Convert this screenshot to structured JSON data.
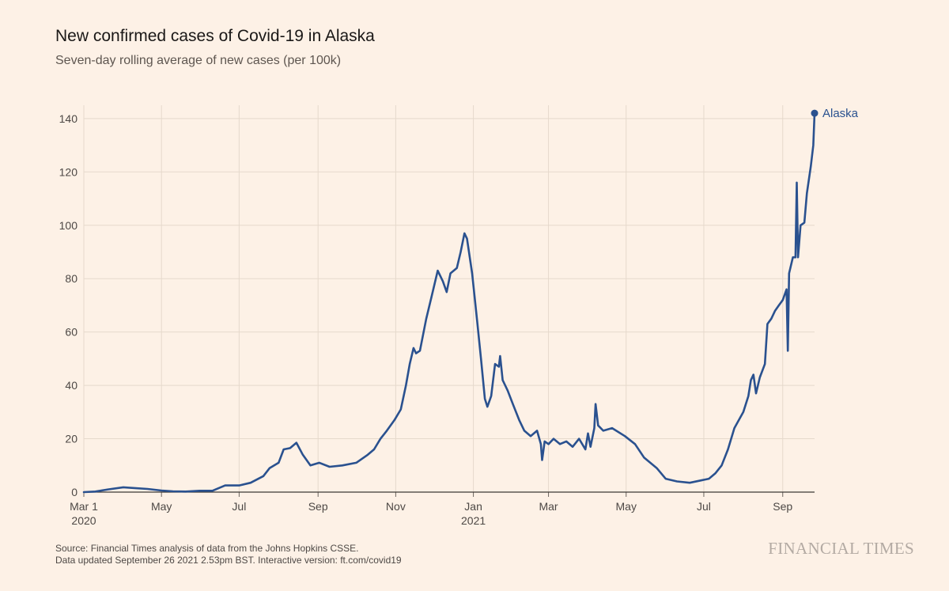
{
  "header": {
    "title": "New confirmed cases of Covid-19 in Alaska",
    "subtitle": "Seven-day rolling average of new cases (per 100k)"
  },
  "footer": {
    "source": "Source: Financial Times analysis of data from the Johns Hopkins CSSE.",
    "updated": "Data updated September 26 2021 2.53pm BST. Interactive version: ft.com/covid19",
    "brand": "FINANCIAL TIMES"
  },
  "chart_data": {
    "type": "line",
    "title": "New confirmed cases of Covid-19 in Alaska",
    "subtitle": "Seven-day rolling average of new cases (per 100k)",
    "xlabel": "",
    "ylabel": "",
    "xlim": [
      "2020-03-01",
      "2021-09-26"
    ],
    "ylim": [
      0,
      145
    ],
    "yticks": [
      0,
      20,
      40,
      60,
      80,
      100,
      120,
      140
    ],
    "xticks": [
      {
        "date": "2020-03-01",
        "label": "Mar 1",
        "sublabel": "2020"
      },
      {
        "date": "2020-05-01",
        "label": "May"
      },
      {
        "date": "2020-07-01",
        "label": "Jul"
      },
      {
        "date": "2020-09-01",
        "label": "Sep"
      },
      {
        "date": "2020-11-01",
        "label": "Nov"
      },
      {
        "date": "2021-01-01",
        "label": "Jan",
        "sublabel": "2021"
      },
      {
        "date": "2021-03-01",
        "label": "Mar"
      },
      {
        "date": "2021-05-01",
        "label": "May"
      },
      {
        "date": "2021-07-01",
        "label": "Jul"
      },
      {
        "date": "2021-09-01",
        "label": "Sep"
      }
    ],
    "grid": true,
    "line_color": "#2a518f",
    "series": [
      {
        "name": "Alaska",
        "points": [
          [
            "2020-03-01",
            0
          ],
          [
            "2020-03-10",
            0.2
          ],
          [
            "2020-03-20",
            1
          ],
          [
            "2020-04-01",
            1.8
          ],
          [
            "2020-04-10",
            1.5
          ],
          [
            "2020-04-20",
            1.2
          ],
          [
            "2020-05-01",
            0.6
          ],
          [
            "2020-05-10",
            0.3
          ],
          [
            "2020-05-20",
            0.2
          ],
          [
            "2020-05-31",
            0.5
          ],
          [
            "2020-06-10",
            0.5
          ],
          [
            "2020-06-20",
            2.5
          ],
          [
            "2020-07-01",
            2.5
          ],
          [
            "2020-07-10",
            3.5
          ],
          [
            "2020-07-20",
            6
          ],
          [
            "2020-07-25",
            9
          ],
          [
            "2020-08-01",
            11
          ],
          [
            "2020-08-05",
            16
          ],
          [
            "2020-08-10",
            16.5
          ],
          [
            "2020-08-15",
            18.5
          ],
          [
            "2020-08-20",
            14
          ],
          [
            "2020-08-26",
            10
          ],
          [
            "2020-09-02",
            11
          ],
          [
            "2020-09-10",
            9.5
          ],
          [
            "2020-09-20",
            10
          ],
          [
            "2020-10-01",
            11
          ],
          [
            "2020-10-10",
            14
          ],
          [
            "2020-10-15",
            16
          ],
          [
            "2020-10-20",
            20
          ],
          [
            "2020-10-25",
            23
          ],
          [
            "2020-10-31",
            27
          ],
          [
            "2020-11-05",
            31
          ],
          [
            "2020-11-09",
            40
          ],
          [
            "2020-11-12",
            48
          ],
          [
            "2020-11-15",
            54
          ],
          [
            "2020-11-17",
            52
          ],
          [
            "2020-11-20",
            53
          ],
          [
            "2020-11-25",
            65
          ],
          [
            "2020-11-29",
            73
          ],
          [
            "2020-12-04",
            83
          ],
          [
            "2020-12-08",
            79
          ],
          [
            "2020-12-11",
            75
          ],
          [
            "2020-12-14",
            82
          ],
          [
            "2020-12-19",
            84
          ],
          [
            "2020-12-22",
            90
          ],
          [
            "2020-12-25",
            97
          ],
          [
            "2020-12-27",
            95
          ],
          [
            "2020-12-31",
            82
          ],
          [
            "2021-01-04",
            64
          ],
          [
            "2021-01-07",
            50
          ],
          [
            "2021-01-10",
            35
          ],
          [
            "2021-01-12",
            32
          ],
          [
            "2021-01-15",
            36
          ],
          [
            "2021-01-18",
            48
          ],
          [
            "2021-01-21",
            47
          ],
          [
            "2021-01-22",
            51
          ],
          [
            "2021-01-24",
            42
          ],
          [
            "2021-01-28",
            38
          ],
          [
            "2021-02-01",
            33
          ],
          [
            "2021-02-06",
            27
          ],
          [
            "2021-02-10",
            23
          ],
          [
            "2021-02-15",
            21
          ],
          [
            "2021-02-20",
            23
          ],
          [
            "2021-02-23",
            18
          ],
          [
            "2021-02-24",
            12
          ],
          [
            "2021-02-26",
            19
          ],
          [
            "2021-03-01",
            18
          ],
          [
            "2021-03-05",
            20
          ],
          [
            "2021-03-10",
            18
          ],
          [
            "2021-03-15",
            19
          ],
          [
            "2021-03-20",
            17
          ],
          [
            "2021-03-25",
            20
          ],
          [
            "2021-03-30",
            16
          ],
          [
            "2021-04-01",
            22
          ],
          [
            "2021-04-03",
            17
          ],
          [
            "2021-04-06",
            24
          ],
          [
            "2021-04-07",
            33
          ],
          [
            "2021-04-09",
            25
          ],
          [
            "2021-04-13",
            23
          ],
          [
            "2021-04-20",
            24
          ],
          [
            "2021-04-30",
            21
          ],
          [
            "2021-05-08",
            18
          ],
          [
            "2021-05-15",
            13
          ],
          [
            "2021-05-25",
            9
          ],
          [
            "2021-06-01",
            5
          ],
          [
            "2021-06-10",
            4
          ],
          [
            "2021-06-20",
            3.5
          ],
          [
            "2021-06-30",
            4.5
          ],
          [
            "2021-07-05",
            5
          ],
          [
            "2021-07-10",
            7
          ],
          [
            "2021-07-15",
            10
          ],
          [
            "2021-07-20",
            16
          ],
          [
            "2021-07-25",
            24
          ],
          [
            "2021-08-01",
            30
          ],
          [
            "2021-08-05",
            36
          ],
          [
            "2021-08-07",
            42
          ],
          [
            "2021-08-09",
            44
          ],
          [
            "2021-08-11",
            37
          ],
          [
            "2021-08-14",
            43
          ],
          [
            "2021-08-18",
            48
          ],
          [
            "2021-08-20",
            63
          ],
          [
            "2021-08-23",
            65
          ],
          [
            "2021-08-26",
            68
          ],
          [
            "2021-08-29",
            70
          ],
          [
            "2021-09-01",
            72
          ],
          [
            "2021-09-04",
            76
          ],
          [
            "2021-09-05",
            53
          ],
          [
            "2021-09-06",
            82
          ],
          [
            "2021-09-09",
            88
          ],
          [
            "2021-09-11",
            88
          ],
          [
            "2021-09-12",
            116
          ],
          [
            "2021-09-13",
            88
          ],
          [
            "2021-09-15",
            100
          ],
          [
            "2021-09-18",
            101
          ],
          [
            "2021-09-20",
            112
          ],
          [
            "2021-09-23",
            122
          ],
          [
            "2021-09-25",
            130
          ],
          [
            "2021-09-26",
            142
          ]
        ]
      }
    ]
  }
}
